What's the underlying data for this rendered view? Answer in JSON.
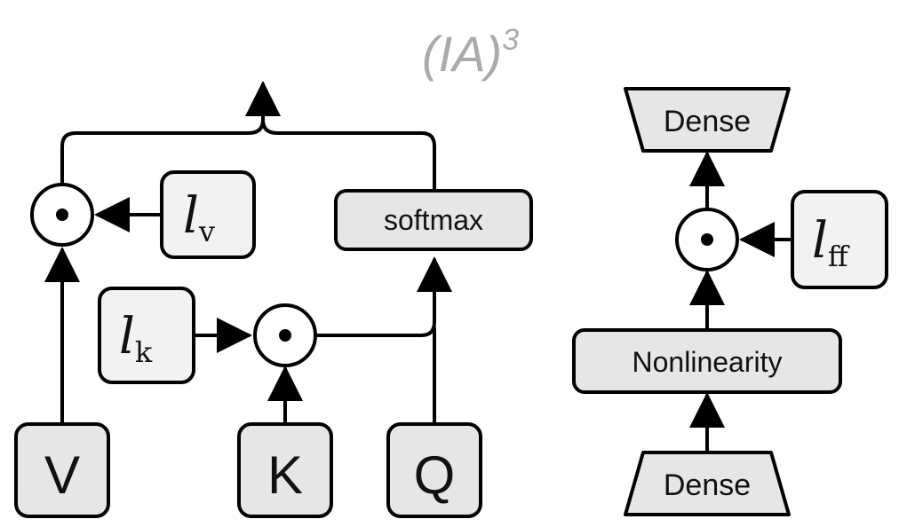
{
  "title": {
    "text": "(IA)",
    "sup": "3"
  },
  "attention": {
    "inputs": {
      "v": "V",
      "k": "K",
      "q": "Q"
    },
    "softmax": "softmax",
    "scale_v": {
      "base": "l",
      "sub": "v"
    },
    "scale_k": {
      "base": "l",
      "sub": "k"
    }
  },
  "ffn": {
    "dense_top": "Dense",
    "dense_bottom": "Dense",
    "nonlinearity": "Nonlinearity",
    "scale_ff": {
      "base": "l",
      "sub": "ff"
    }
  },
  "icons": {
    "elementwise_product": "circled-dot-icon"
  }
}
